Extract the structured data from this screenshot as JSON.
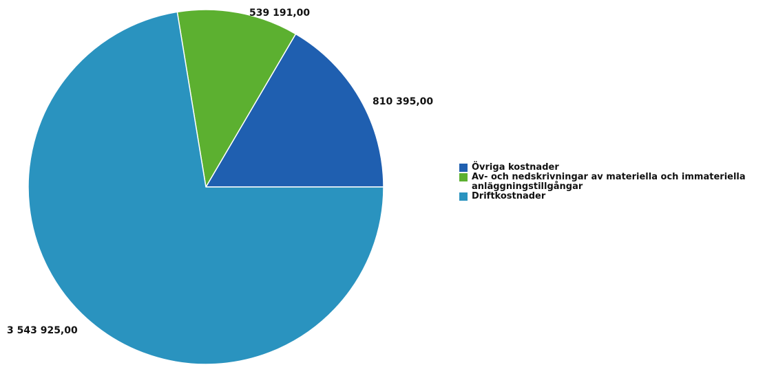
{
  "chart_data": {
    "type": "pie",
    "start_angle": 0,
    "direction": "counterclockwise",
    "slices": [
      {
        "label": "Övriga kostnader",
        "value": 810395.0,
        "value_label": "810 395,00",
        "color": "#1f5fb0"
      },
      {
        "label": "Av- och nedskrivningar av materiella och immateriella anläggningstillgångar",
        "value": 539191.0,
        "value_label": "539 191,00",
        "color": "#5cb030"
      },
      {
        "label": "Driftkostnader",
        "value": 3543925.0,
        "value_label": "3 543 925,00",
        "color": "#2a93bf"
      }
    ],
    "legend": {
      "position": "right",
      "items": [
        {
          "label": "Övriga kostnader",
          "color": "#1f5fb0"
        },
        {
          "label": "Av- och nedskrivningar av materiella och immateriella anläggningstillgångar",
          "color": "#5cb030"
        },
        {
          "label": "Driftkostnader",
          "color": "#2a93bf"
        }
      ]
    }
  }
}
